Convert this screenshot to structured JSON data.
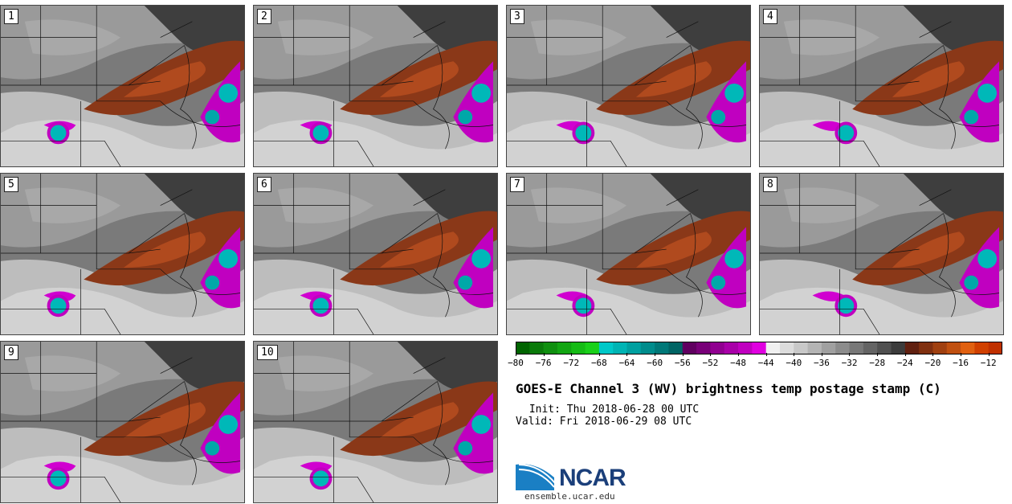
{
  "title": "GOES-E Channel 3 (WV) brightness temp postage stamp (C)",
  "init": " Init: Thu 2018-06-28 00 UTC",
  "valid": "Valid: Fri 2018-06-29 08 UTC",
  "panels": [
    "1",
    "2",
    "3",
    "4",
    "5",
    "6",
    "7",
    "8",
    "9",
    "10"
  ],
  "colorbar": {
    "min": -80,
    "max": -10,
    "step": 2,
    "tick_labels": [
      "−80",
      "−76",
      "−72",
      "−68",
      "−64",
      "−60",
      "−56",
      "−52",
      "−48",
      "−44",
      "−40",
      "−36",
      "−32",
      "−28",
      "−24",
      "−20",
      "−16",
      "−12"
    ],
    "tick_values": [
      -80,
      -76,
      -72,
      -68,
      -64,
      -60,
      -56,
      -52,
      -48,
      -44,
      -40,
      -36,
      -32,
      -28,
      -24,
      -20,
      -16,
      -12
    ],
    "colors": [
      "#006400",
      "#0a7a0a",
      "#0f8f0f",
      "#12a512",
      "#15bb15",
      "#1ad01a",
      "#00c8c8",
      "#00b4b4",
      "#00a0a0",
      "#008c8c",
      "#007878",
      "#006464",
      "#600060",
      "#780078",
      "#900090",
      "#a800a8",
      "#c000c0",
      "#e000e0",
      "#f0f0f0",
      "#dcdcdc",
      "#c8c8c8",
      "#b4b4b4",
      "#a0a0a0",
      "#8c8c8c",
      "#787878",
      "#646464",
      "#505050",
      "#3c3c3c",
      "#602010",
      "#803010",
      "#a04010",
      "#c05010",
      "#e06010",
      "#d04000",
      "#c03000"
    ]
  },
  "logo": {
    "name": "NCAR",
    "url": "ensemble.ucar.edu"
  }
}
